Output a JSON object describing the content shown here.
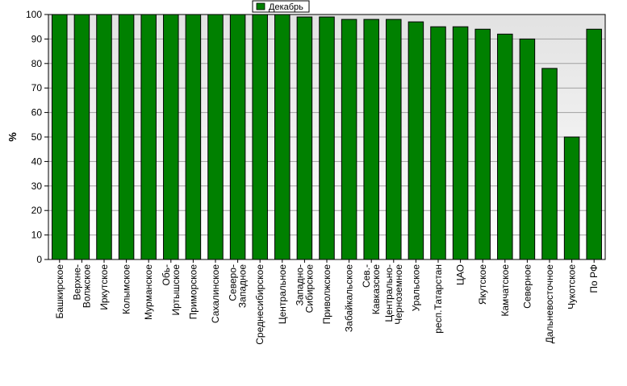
{
  "chart_data": {
    "type": "bar",
    "title": "",
    "xlabel": "",
    "ylabel": "%",
    "ylim": [
      0,
      100
    ],
    "yticks": [
      0,
      10,
      20,
      30,
      40,
      50,
      60,
      70,
      80,
      90,
      100
    ],
    "grid": true,
    "legend_position": "top-center",
    "bar_color": "#008000",
    "categories": [
      "Башкирское",
      "Верхне-|Волжское",
      "Иркутское",
      "Колымское",
      "Мурманское",
      "Обь-|Иртышское",
      "Приморское",
      "Сахалинское",
      "Северо-|Западное",
      "Среднесибирское",
      "Центральное",
      "Западно-|Сибирское",
      "Приволжское",
      "Забайкальское",
      "Сев.-|Кавказское",
      "Центрально-|Черноземное",
      "Уральское",
      "респ.Татарстан",
      "ЦАО",
      "Якутское",
      "Камчатское",
      "Северное",
      "Дальневосточное",
      "Чукотское",
      "По РФ"
    ],
    "series": [
      {
        "name": "Декабрь",
        "values": [
          100,
          100,
          100,
          100,
          100,
          100,
          100,
          100,
          100,
          100,
          100,
          99,
          99,
          98,
          98,
          98,
          97,
          95,
          95,
          94,
          92,
          90,
          78,
          50,
          94
        ]
      }
    ]
  }
}
